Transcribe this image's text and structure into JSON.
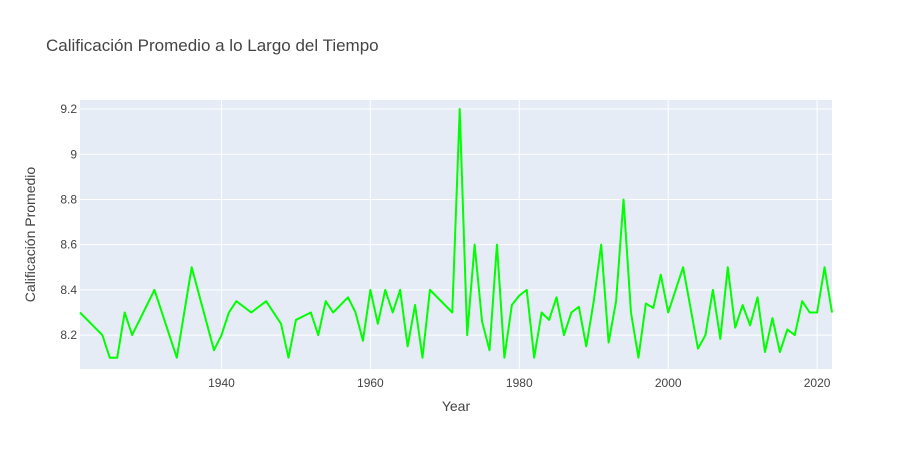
{
  "chart_data": {
    "type": "line",
    "title": "Calificación Promedio a lo Largo del Tiempo",
    "xlabel": "Year",
    "ylabel": "Calificación Promedio",
    "xlim": [
      1921,
      2022
    ],
    "ylim": [
      8.05,
      9.24
    ],
    "x_ticks": [
      1940,
      1960,
      1980,
      2000,
      2020
    ],
    "y_ticks": [
      8.2,
      8.4,
      8.6,
      8.8,
      9,
      9.2
    ],
    "y_tick_labels": [
      "8.2",
      "8.4",
      "8.6",
      "8.8",
      "9",
      "9.2"
    ],
    "grid": true,
    "plot_background": "#e5ecf6",
    "line_color": "#00ff00",
    "series": [
      {
        "x": [
          1921,
          1924,
          1925,
          1926,
          1927,
          1928,
          1931,
          1934,
          1936,
          1939,
          1940,
          1941,
          1942,
          1944,
          1946,
          1948,
          1949,
          1950,
          1952,
          1953,
          1954,
          1955,
          1957,
          1958,
          1959,
          1960,
          1961,
          1962,
          1963,
          1964,
          1965,
          1966,
          1967,
          1968,
          1971,
          1972,
          1973,
          1974,
          1975,
          1976,
          1977,
          1978,
          1979,
          1980,
          1981,
          1982,
          1983,
          1984,
          1985,
          1986,
          1987,
          1988,
          1989,
          1990,
          1991,
          1992,
          1993,
          1994,
          1995,
          1996,
          1997,
          1998,
          1999,
          2000,
          2002,
          2004,
          2005,
          2006,
          2007,
          2008,
          2009,
          2010,
          2011,
          2012,
          2013,
          2014,
          2015,
          2016,
          2017,
          2018,
          2019,
          2020,
          2021,
          2022
        ],
        "y": [
          8.3,
          8.2,
          8.1,
          8.1,
          8.3,
          8.2,
          8.4,
          8.1,
          8.5,
          8.133,
          8.2,
          8.3,
          8.35,
          8.3,
          8.35,
          8.25,
          8.1,
          8.267,
          8.3,
          8.2,
          8.35,
          8.3,
          8.367,
          8.3,
          8.175,
          8.4,
          8.25,
          8.4,
          8.3,
          8.4,
          8.15,
          8.333,
          8.1,
          8.4,
          8.3,
          9.2,
          8.2,
          8.6,
          8.26,
          8.133,
          8.6,
          8.1,
          8.333,
          8.375,
          8.4,
          8.1,
          8.3,
          8.267,
          8.367,
          8.2,
          8.3,
          8.325,
          8.15,
          8.35,
          8.6,
          8.167,
          8.35,
          8.8,
          8.3,
          8.1,
          8.34,
          8.32,
          8.467,
          8.3,
          8.5,
          8.14,
          8.2,
          8.4,
          8.183,
          8.5,
          8.233,
          8.333,
          8.243,
          8.367,
          8.125,
          8.275,
          8.125,
          8.225,
          8.2,
          8.35,
          8.3,
          8.3,
          8.5,
          8.3
        ]
      }
    ]
  }
}
